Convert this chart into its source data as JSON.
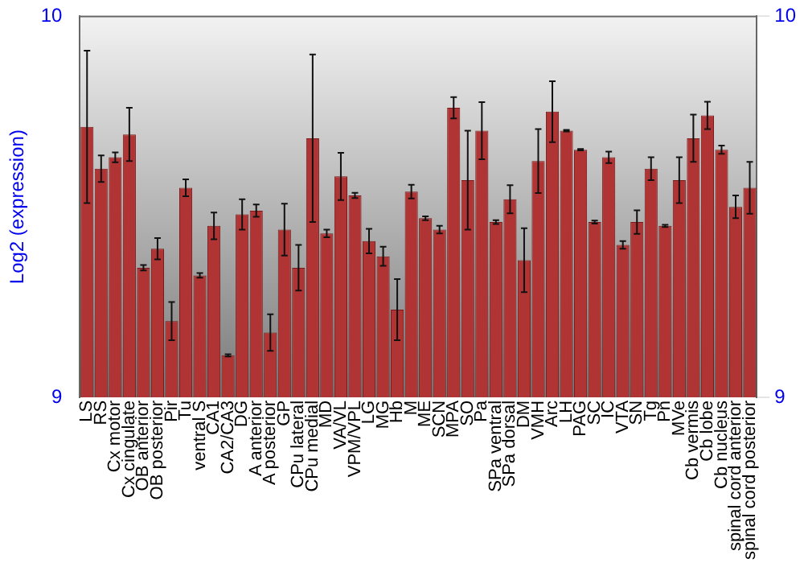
{
  "chart_data": {
    "type": "bar",
    "ylabel": "Log2 (expression)",
    "categories": [
      "LS",
      "RS",
      "Cx motor",
      "Cx cingulate",
      "OB anterior",
      "OB posterior",
      "Pir",
      "Tu",
      "ventral S",
      "CA1",
      "CA2/CA3",
      "DG",
      "A anterior",
      "A posterior",
      "GP",
      "CPu lateral",
      "CPu medial",
      "MD",
      "VA/VL",
      "VPM/VPL",
      "LG",
      "MG",
      "Hb",
      "M",
      "ME",
      "SCN",
      "MPA",
      "SO",
      "Pa",
      "SPa ventral",
      "SPa dorsal",
      "DM",
      "VMH",
      "Arc",
      "LH",
      "PAG",
      "SC",
      "IC",
      "VTA",
      "SN",
      "Tg",
      "Pn",
      "MVe",
      "Cb vermis",
      "Cb lobe",
      "Cb nucleus",
      "spinal cord anterior",
      "spinal cord posterior"
    ],
    "series": [
      {
        "color": "#b03434",
        "values": [
          9.71,
          9.6,
          9.63,
          9.69,
          9.34,
          9.39,
          9.2,
          9.55,
          9.32,
          9.45,
          9.11,
          9.48,
          9.49,
          9.17,
          9.44,
          9.34,
          9.68,
          9.43,
          9.58,
          9.53,
          9.41,
          9.37,
          9.23,
          9.54,
          9.47,
          9.44,
          9.76,
          9.57,
          9.7,
          9.46,
          9.52,
          9.36,
          9.62,
          9.75,
          9.7,
          9.65,
          9.46,
          9.63,
          9.4,
          9.46,
          9.6,
          9.45,
          9.57,
          9.68,
          9.74,
          9.65,
          9.5,
          9.55
        ],
        "errors": [
          0.2,
          0.035,
          0.013,
          0.07,
          0.007,
          0.028,
          0.05,
          0.022,
          0.006,
          0.035,
          0.003,
          0.04,
          0.016,
          0.048,
          0.068,
          0.06,
          0.22,
          0.01,
          0.062,
          0.007,
          0.032,
          0.025,
          0.08,
          0.018,
          0.005,
          0.01,
          0.028,
          0.13,
          0.075,
          0.005,
          0.037,
          0.084,
          0.084,
          0.08,
          0.002,
          0.002,
          0.004,
          0.015,
          0.01,
          0.031,
          0.03,
          0.003,
          0.06,
          0.062,
          0.036,
          0.011,
          0.03,
          0.068
        ]
      }
    ],
    "ylim": [
      9,
      10
    ],
    "yticks": [
      9,
      10
    ],
    "y2lim": [
      9,
      10
    ],
    "y2ticks": [
      9,
      10
    ],
    "grid": false,
    "legend": false
  }
}
